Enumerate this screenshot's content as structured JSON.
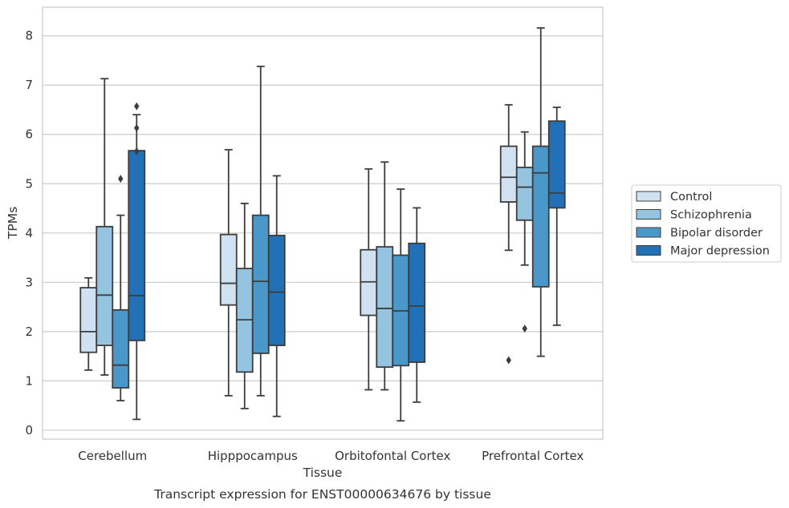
{
  "caption": "Transcript expression for ENST00000634676 by tissue",
  "chart_data": {
    "type": "boxplot",
    "xlabel": "Tissue",
    "ylabel": "TPMs",
    "ylim": [
      -0.18,
      8.58
    ],
    "yticks": [
      0,
      1,
      2,
      3,
      4,
      5,
      6,
      7,
      8
    ],
    "grid": "horizontal",
    "legend_position": "right",
    "categories": [
      "Cerebellum",
      "Hipppocampus",
      "Orbitofontal Cortex",
      "Prefrontal Cortex"
    ],
    "series": [
      {
        "name": "Control",
        "color": "#d0e1f2",
        "boxes": [
          {
            "whislo": 1.22,
            "q1": 1.58,
            "med": 2.0,
            "q3": 2.89,
            "whishi": 3.09,
            "fliers": []
          },
          {
            "whislo": 0.7,
            "q1": 2.54,
            "med": 2.98,
            "q3": 3.97,
            "whishi": 5.69,
            "fliers": []
          },
          {
            "whislo": 0.82,
            "q1": 2.33,
            "med": 3.01,
            "q3": 3.66,
            "whishi": 5.3,
            "fliers": []
          },
          {
            "whislo": 3.65,
            "q1": 4.63,
            "med": 5.13,
            "q3": 5.76,
            "whishi": 6.6,
            "fliers": [
              1.42
            ]
          }
        ]
      },
      {
        "name": "Schizophrenia",
        "color": "#94c4df",
        "boxes": [
          {
            "whislo": 1.12,
            "q1": 1.72,
            "med": 2.74,
            "q3": 4.13,
            "whishi": 7.13,
            "fliers": []
          },
          {
            "whislo": 0.44,
            "q1": 1.18,
            "med": 2.24,
            "q3": 3.28,
            "whishi": 4.6,
            "fliers": []
          },
          {
            "whislo": 0.82,
            "q1": 1.28,
            "med": 2.47,
            "q3": 3.72,
            "whishi": 5.44,
            "fliers": []
          },
          {
            "whislo": 3.35,
            "q1": 4.26,
            "med": 4.93,
            "q3": 5.33,
            "whishi": 6.05,
            "fliers": [
              2.06
            ]
          }
        ]
      },
      {
        "name": "Bipolar disorder",
        "color": "#4a98c9",
        "boxes": [
          {
            "whislo": 0.6,
            "q1": 0.86,
            "med": 1.32,
            "q3": 2.44,
            "whishi": 4.36,
            "fliers": [
              5.1
            ]
          },
          {
            "whislo": 0.7,
            "q1": 1.56,
            "med": 3.02,
            "q3": 4.36,
            "whishi": 7.38,
            "fliers": []
          },
          {
            "whislo": 0.19,
            "q1": 1.31,
            "med": 2.42,
            "q3": 3.55,
            "whishi": 4.89,
            "fliers": []
          },
          {
            "whislo": 1.5,
            "q1": 2.91,
            "med": 5.22,
            "q3": 5.76,
            "whishi": 8.16,
            "fliers": []
          }
        ]
      },
      {
        "name": "Major depression",
        "color": "#2270b5",
        "boxes": [
          {
            "whislo": 0.22,
            "q1": 1.82,
            "med": 2.73,
            "q3": 5.67,
            "whishi": 6.4,
            "fliers": [
              6.57,
              6.13,
              5.66
            ]
          },
          {
            "whislo": 0.28,
            "q1": 1.72,
            "med": 2.8,
            "q3": 3.95,
            "whishi": 5.16,
            "fliers": []
          },
          {
            "whislo": 0.57,
            "q1": 1.38,
            "med": 2.52,
            "q3": 3.79,
            "whishi": 4.51,
            "fliers": []
          },
          {
            "whislo": 2.13,
            "q1": 4.51,
            "med": 4.81,
            "q3": 6.27,
            "whishi": 6.55,
            "fliers": []
          }
        ]
      }
    ]
  }
}
